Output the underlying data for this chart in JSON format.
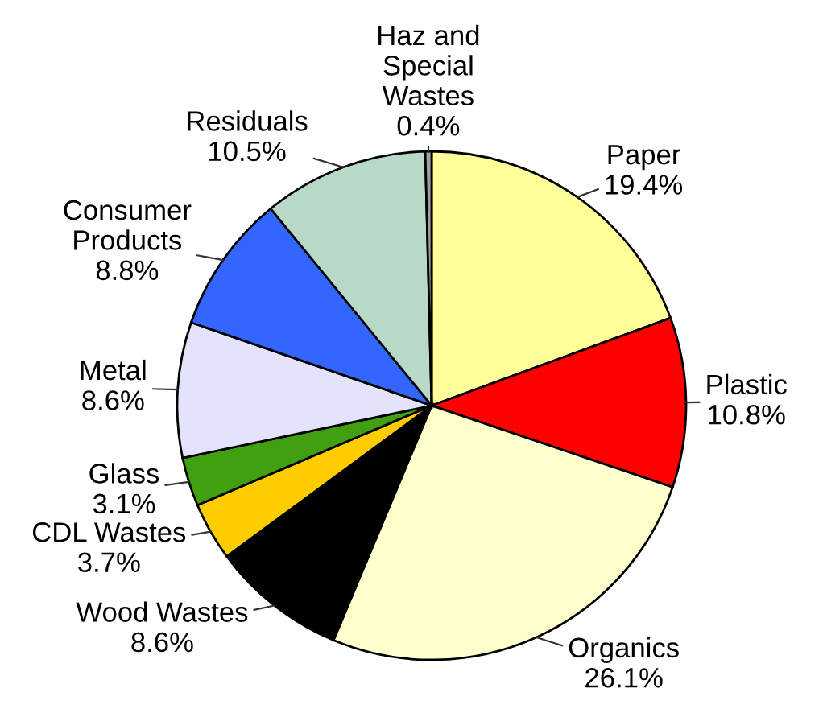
{
  "chart_data": {
    "type": "pie",
    "categories": [
      "Paper",
      "Plastic",
      "Organics",
      "Wood Wastes",
      "CDL Wastes",
      "Glass",
      "Metal",
      "Consumer Products",
      "Residuals",
      "Haz and Special Wastes"
    ],
    "values": [
      19.4,
      10.8,
      26.1,
      8.6,
      3.7,
      3.1,
      8.6,
      8.8,
      10.5,
      0.4
    ],
    "value_labels": [
      "19.4%",
      "10.8%",
      "26.1%",
      "8.6%",
      "3.7%",
      "3.1%",
      "8.6%",
      "8.8%",
      "10.5%",
      "0.4%"
    ],
    "colors": [
      "#ffff99",
      "#ff0000",
      "#ffffcc",
      "#000000",
      "#ffcc00",
      "#40a010",
      "#e3e3fb",
      "#3366ff",
      "#b8d8c8",
      "#a0a0a0"
    ]
  }
}
